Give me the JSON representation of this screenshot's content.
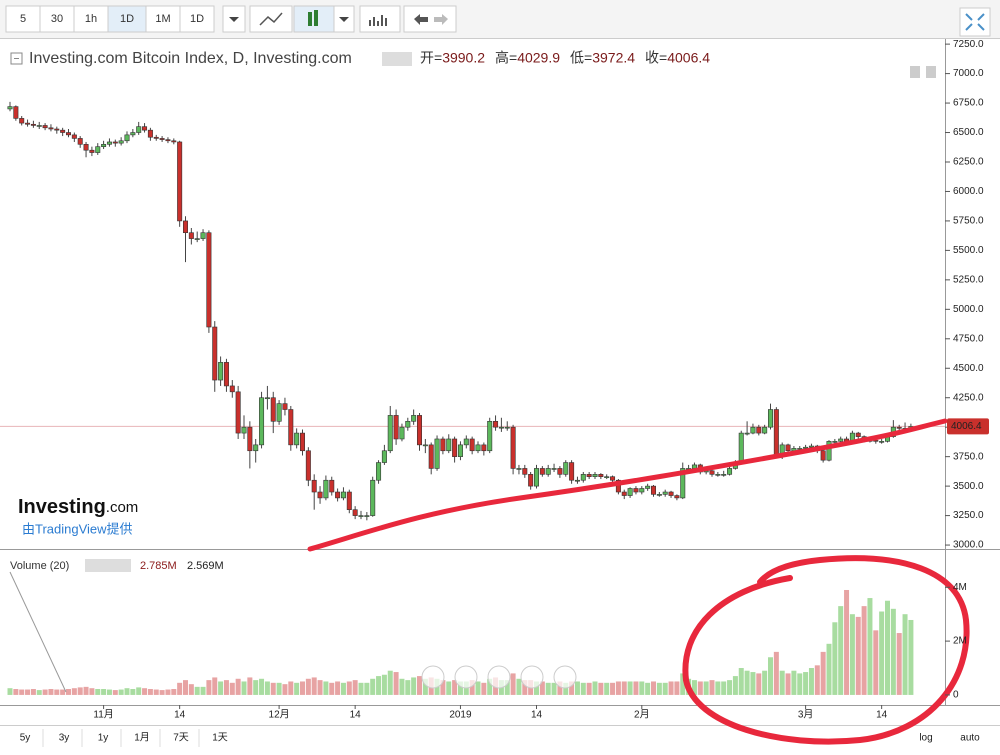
{
  "toolbar": {
    "intervals": [
      "5",
      "30",
      "1h",
      "1D",
      "1M",
      "1D"
    ]
  },
  "chart_data": {
    "type": "candlestick",
    "title": "Investing.com Bitcoin Index, D, Investing.com",
    "legend_labels": [
      "开=",
      "高=",
      "低=",
      "收="
    ],
    "up_color": "#5cb85c",
    "down_color": "#c9302c",
    "volume_up_color": "#a8dca0",
    "volume_down_color": "#e7a3a3",
    "last_line_color": "#e8b4b8",
    "categories": [
      null,
      null,
      null,
      null,
      null,
      null,
      null,
      null,
      null,
      null,
      null,
      null,
      null,
      null,
      null,
      null,
      "11月",
      null,
      null,
      null,
      null,
      null,
      null,
      null,
      null,
      null,
      null,
      null,
      null,
      "14",
      null,
      null,
      null,
      null,
      null,
      null,
      null,
      null,
      null,
      null,
      null,
      null,
      null,
      null,
      null,
      null,
      "12月",
      null,
      null,
      null,
      null,
      null,
      null,
      null,
      null,
      null,
      null,
      null,
      null,
      "14",
      null,
      null,
      null,
      null,
      null,
      null,
      null,
      null,
      null,
      null,
      null,
      null,
      null,
      null,
      null,
      null,
      null,
      "2019",
      null,
      null,
      null,
      null,
      null,
      null,
      null,
      null,
      null,
      null,
      null,
      null,
      "14",
      null,
      null,
      null,
      null,
      null,
      null,
      null,
      null,
      null,
      null,
      null,
      null,
      null,
      null,
      null,
      null,
      null,
      "2月",
      null,
      null,
      null,
      null,
      null,
      null,
      null,
      null,
      null,
      null,
      null,
      null,
      null,
      null,
      null,
      null,
      null,
      null,
      null,
      null,
      null,
      null,
      null,
      null,
      null,
      null,
      null,
      "3月",
      null,
      null,
      null,
      null,
      null,
      null,
      null,
      null,
      null,
      null,
      null,
      null,
      "14",
      null,
      null,
      null,
      null,
      null
    ],
    "ohlc": [
      [
        6700,
        6760,
        6680,
        6720
      ],
      [
        6720,
        6730,
        6600,
        6620
      ],
      [
        6620,
        6640,
        6560,
        6580
      ],
      [
        6580,
        6610,
        6550,
        6570
      ],
      [
        6570,
        6600,
        6540,
        6560
      ],
      [
        6560,
        6590,
        6530,
        6560
      ],
      [
        6560,
        6580,
        6520,
        6540
      ],
      [
        6540,
        6570,
        6510,
        6530
      ],
      [
        6530,
        6550,
        6490,
        6520
      ],
      [
        6520,
        6540,
        6470,
        6500
      ],
      [
        6500,
        6530,
        6460,
        6480
      ],
      [
        6480,
        6500,
        6420,
        6450
      ],
      [
        6450,
        6470,
        6370,
        6400
      ],
      [
        6400,
        6420,
        6290,
        6350
      ],
      [
        6350,
        6380,
        6300,
        6330
      ],
      [
        6330,
        6410,
        6310,
        6380
      ],
      [
        6380,
        6430,
        6360,
        6400
      ],
      [
        6400,
        6450,
        6380,
        6420
      ],
      [
        6420,
        6440,
        6380,
        6410
      ],
      [
        6410,
        6460,
        6390,
        6430
      ],
      [
        6430,
        6510,
        6410,
        6480
      ],
      [
        6480,
        6530,
        6460,
        6500
      ],
      [
        6500,
        6590,
        6480,
        6550
      ],
      [
        6550,
        6580,
        6500,
        6520
      ],
      [
        6520,
        6540,
        6430,
        6460
      ],
      [
        6460,
        6480,
        6430,
        6450
      ],
      [
        6450,
        6470,
        6420,
        6440
      ],
      [
        6440,
        6460,
        6410,
        6430
      ],
      [
        6430,
        6450,
        6400,
        6420
      ],
      [
        6420,
        6430,
        5700,
        5750
      ],
      [
        5750,
        5790,
        5400,
        5650
      ],
      [
        5650,
        5690,
        5550,
        5600
      ],
      [
        5600,
        5660,
        5570,
        5600
      ],
      [
        5600,
        5680,
        5580,
        5650
      ],
      [
        5650,
        5670,
        4800,
        4850
      ],
      [
        4850,
        4900,
        4300,
        4400
      ],
      [
        4400,
        4600,
        4350,
        4550
      ],
      [
        4550,
        4580,
        4300,
        4350
      ],
      [
        4350,
        4400,
        4250,
        4300
      ],
      [
        4300,
        4350,
        3900,
        3950
      ],
      [
        3950,
        4100,
        3900,
        4000
      ],
      [
        4000,
        4050,
        3650,
        3800
      ],
      [
        3800,
        3900,
        3700,
        3850
      ],
      [
        3850,
        4300,
        3820,
        4250
      ],
      [
        4250,
        4350,
        4150,
        4250
      ],
      [
        4250,
        4300,
        3950,
        4050
      ],
      [
        4050,
        4230,
        4020,
        4200
      ],
      [
        4200,
        4250,
        4100,
        4150
      ],
      [
        4150,
        4180,
        3800,
        3850
      ],
      [
        3850,
        3990,
        3820,
        3950
      ],
      [
        3950,
        3980,
        3760,
        3800
      ],
      [
        3800,
        3830,
        3500,
        3550
      ],
      [
        3550,
        3600,
        3300,
        3450
      ],
      [
        3450,
        3500,
        3350,
        3400
      ],
      [
        3400,
        3590,
        3380,
        3550
      ],
      [
        3550,
        3580,
        3420,
        3450
      ],
      [
        3450,
        3480,
        3370,
        3400
      ],
      [
        3400,
        3490,
        3380,
        3450
      ],
      [
        3450,
        3470,
        3270,
        3300
      ],
      [
        3300,
        3330,
        3220,
        3250
      ],
      [
        3250,
        3290,
        3220,
        3250
      ],
      [
        3250,
        3280,
        3210,
        3250
      ],
      [
        3250,
        3580,
        3240,
        3550
      ],
      [
        3550,
        3720,
        3520,
        3700
      ],
      [
        3700,
        3850,
        3680,
        3800
      ],
      [
        3800,
        4180,
        3780,
        4100
      ],
      [
        4100,
        4150,
        3850,
        3900
      ],
      [
        3900,
        4030,
        3880,
        4000
      ],
      [
        4000,
        4080,
        3970,
        4050
      ],
      [
        4050,
        4150,
        4020,
        4100
      ],
      [
        4100,
        4120,
        3800,
        3850
      ],
      [
        3850,
        3900,
        3780,
        3850
      ],
      [
        3850,
        3870,
        3600,
        3650
      ],
      [
        3650,
        3930,
        3630,
        3900
      ],
      [
        3900,
        3920,
        3770,
        3800
      ],
      [
        3800,
        3940,
        3780,
        3900
      ],
      [
        3900,
        3920,
        3700,
        3750
      ],
      [
        3750,
        3880,
        3720,
        3850
      ],
      [
        3850,
        3930,
        3820,
        3900
      ],
      [
        3900,
        3920,
        3770,
        3800
      ],
      [
        3800,
        3880,
        3780,
        3850
      ],
      [
        3850,
        3870,
        3760,
        3800
      ],
      [
        3800,
        4080,
        3780,
        4050
      ],
      [
        4050,
        4100,
        3970,
        4000
      ],
      [
        4000,
        4080,
        3960,
        4000
      ],
      [
        4000,
        4050,
        3970,
        4000
      ],
      [
        4000,
        4020,
        3600,
        3650
      ],
      [
        3650,
        3680,
        3600,
        3650
      ],
      [
        3650,
        3680,
        3570,
        3600
      ],
      [
        3600,
        3620,
        3470,
        3500
      ],
      [
        3500,
        3680,
        3480,
        3650
      ],
      [
        3650,
        3670,
        3580,
        3600
      ],
      [
        3600,
        3680,
        3580,
        3650
      ],
      [
        3650,
        3690,
        3620,
        3650
      ],
      [
        3650,
        3670,
        3570,
        3600
      ],
      [
        3600,
        3720,
        3580,
        3700
      ],
      [
        3700,
        3720,
        3520,
        3550
      ],
      [
        3550,
        3580,
        3520,
        3550
      ],
      [
        3550,
        3620,
        3530,
        3600
      ],
      [
        3600,
        3620,
        3560,
        3580
      ],
      [
        3580,
        3620,
        3560,
        3600
      ],
      [
        3600,
        3610,
        3560,
        3580
      ],
      [
        3580,
        3600,
        3560,
        3580
      ],
      [
        3580,
        3590,
        3530,
        3550
      ],
      [
        3550,
        3560,
        3430,
        3450
      ],
      [
        3450,
        3470,
        3390,
        3420
      ],
      [
        3420,
        3490,
        3400,
        3480
      ],
      [
        3480,
        3500,
        3430,
        3450
      ],
      [
        3450,
        3500,
        3430,
        3480
      ],
      [
        3480,
        3520,
        3460,
        3500
      ],
      [
        3500,
        3510,
        3410,
        3430
      ],
      [
        3430,
        3450,
        3410,
        3430
      ],
      [
        3430,
        3470,
        3410,
        3450
      ],
      [
        3450,
        3460,
        3400,
        3420
      ],
      [
        3420,
        3430,
        3380,
        3400
      ],
      [
        3400,
        3700,
        3390,
        3650
      ],
      [
        3650,
        3680,
        3630,
        3650
      ],
      [
        3650,
        3700,
        3620,
        3680
      ],
      [
        3680,
        3690,
        3600,
        3620
      ],
      [
        3620,
        3650,
        3600,
        3630
      ],
      [
        3630,
        3650,
        3580,
        3600
      ],
      [
        3600,
        3620,
        3580,
        3600
      ],
      [
        3600,
        3630,
        3580,
        3600
      ],
      [
        3600,
        3670,
        3590,
        3650
      ],
      [
        3650,
        3720,
        3640,
        3700
      ],
      [
        3700,
        3970,
        3690,
        3950
      ],
      [
        3950,
        4050,
        3930,
        3950
      ],
      [
        3950,
        4030,
        3940,
        4000
      ],
      [
        4000,
        4020,
        3930,
        3950
      ],
      [
        3950,
        4020,
        3940,
        4000
      ],
      [
        4000,
        4200,
        3980,
        4150
      ],
      [
        4150,
        4170,
        3740,
        3750
      ],
      [
        3750,
        3870,
        3730,
        3850
      ],
      [
        3850,
        3860,
        3780,
        3800
      ],
      [
        3800,
        3840,
        3790,
        3820
      ],
      [
        3820,
        3840,
        3800,
        3820
      ],
      [
        3820,
        3850,
        3800,
        3830
      ],
      [
        3830,
        3860,
        3810,
        3840
      ],
      [
        3840,
        3850,
        3780,
        3800
      ],
      [
        3800,
        3810,
        3700,
        3720
      ],
      [
        3720,
        3890,
        3710,
        3880
      ],
      [
        3880,
        3900,
        3860,
        3880
      ],
      [
        3880,
        3920,
        3870,
        3900
      ],
      [
        3900,
        3920,
        3860,
        3880
      ],
      [
        3880,
        3970,
        3870,
        3950
      ],
      [
        3950,
        3960,
        3900,
        3920
      ],
      [
        3920,
        3930,
        3870,
        3880
      ],
      [
        3880,
        3910,
        3870,
        3890
      ],
      [
        3890,
        3900,
        3860,
        3880
      ],
      [
        3880,
        3900,
        3860,
        3880
      ],
      [
        3880,
        3940,
        3870,
        3920
      ],
      [
        3920,
        4060,
        3910,
        4000
      ],
      [
        4000,
        4020,
        3970,
        3990
      ],
      [
        3990,
        4040,
        3980,
        3990.2
      ],
      [
        3990.2,
        4029.9,
        3972.4,
        4006.4
      ]
    ],
    "ylim": [
      2975,
      7285
    ],
    "yticks": [
      {
        "value": 7250,
        "label": "7250.0"
      },
      {
        "value": 7000,
        "label": "7000.0"
      },
      {
        "value": 6750,
        "label": "6750.0"
      },
      {
        "value": 6500,
        "label": "6500.0"
      },
      {
        "value": 6250,
        "label": "6250.0"
      },
      {
        "value": 6000,
        "label": "6000.0"
      },
      {
        "value": 5750,
        "label": "5750.0"
      },
      {
        "value": 5500,
        "label": "5500.0"
      },
      {
        "value": 5250,
        "label": "5250.0"
      },
      {
        "value": 5000,
        "label": "5000.0"
      },
      {
        "value": 4750,
        "label": "4750.0"
      },
      {
        "value": 4500,
        "label": "4500.0"
      },
      {
        "value": 4250,
        "label": "4250.0"
      },
      {
        "value": 4000,
        "label": "4000.0"
      },
      {
        "value": 3750,
        "label": "3750.0"
      },
      {
        "value": 3500,
        "label": "3500.0"
      },
      {
        "value": 3250,
        "label": "3250.0"
      },
      {
        "value": 3000,
        "label": "3000.0"
      }
    ],
    "volume": {
      "title": "Volume (20)",
      "legend_values": [
        "2.785M",
        "2.569M"
      ],
      "values": [
        0.25,
        0.22,
        0.2,
        0.2,
        0.22,
        0.18,
        0.2,
        0.22,
        0.2,
        0.2,
        0.22,
        0.25,
        0.28,
        0.3,
        0.25,
        0.22,
        0.22,
        0.2,
        0.18,
        0.2,
        0.25,
        0.22,
        0.28,
        0.25,
        0.22,
        0.2,
        0.18,
        0.2,
        0.22,
        0.45,
        0.55,
        0.4,
        0.3,
        0.3,
        0.55,
        0.65,
        0.5,
        0.55,
        0.45,
        0.6,
        0.5,
        0.65,
        0.55,
        0.6,
        0.5,
        0.45,
        0.45,
        0.4,
        0.5,
        0.45,
        0.5,
        0.6,
        0.65,
        0.55,
        0.5,
        0.45,
        0.5,
        0.45,
        0.5,
        0.55,
        0.45,
        0.45,
        0.6,
        0.7,
        0.75,
        0.9,
        0.85,
        0.6,
        0.55,
        0.65,
        0.7,
        0.6,
        0.65,
        0.6,
        0.55,
        0.5,
        0.55,
        0.5,
        0.5,
        0.55,
        0.5,
        0.45,
        0.6,
        0.65,
        0.55,
        0.55,
        0.8,
        0.6,
        0.55,
        0.55,
        0.5,
        0.5,
        0.45,
        0.45,
        0.5,
        0.45,
        0.5,
        0.5,
        0.45,
        0.45,
        0.5,
        0.45,
        0.45,
        0.45,
        0.5,
        0.5,
        0.5,
        0.5,
        0.5,
        0.45,
        0.5,
        0.45,
        0.45,
        0.5,
        0.5,
        0.8,
        0.6,
        0.55,
        0.5,
        0.5,
        0.55,
        0.5,
        0.5,
        0.55,
        0.7,
        1.0,
        0.9,
        0.85,
        0.8,
        0.9,
        1.4,
        1.6,
        0.9,
        0.8,
        0.9,
        0.8,
        0.85,
        1.0,
        1.1,
        1.6,
        1.9,
        2.7,
        3.3,
        3.9,
        3.0,
        2.9,
        3.3,
        3.6,
        2.4,
        3.1,
        3.5,
        3.2,
        2.3,
        3.0,
        2.785
      ],
      "ylim": [
        -0.3,
        5.2
      ],
      "yticks": [
        {
          "value": 4,
          "label": "4M"
        },
        {
          "value": 2,
          "label": "2M"
        },
        0
      ]
    }
  },
  "range_buttons": [
    "5y",
    "3y",
    "1y",
    "1月",
    "7天",
    "1天"
  ],
  "scale_buttons": [
    "log",
    "auto"
  ],
  "branding": {
    "logo": "Investing",
    "logo_suffix": ".com",
    "credit": "由TradingView提供"
  }
}
